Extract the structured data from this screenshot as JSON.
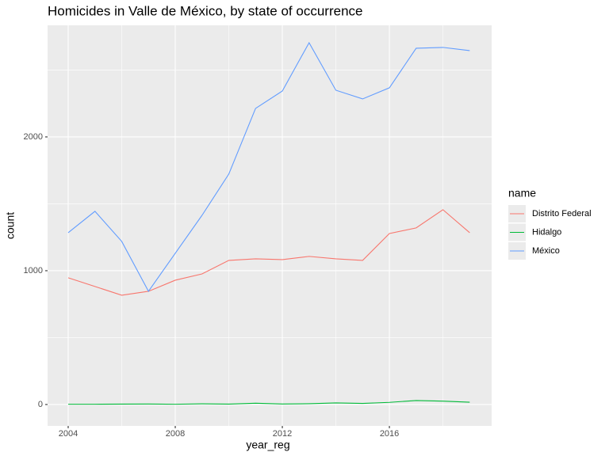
{
  "chart_data": {
    "type": "line",
    "title": "Homicides in Valle de México, by state of occurrence",
    "x_label": "year_reg",
    "y_label": "count",
    "legend_title": "name",
    "x": [
      2004,
      2005,
      2006,
      2007,
      2008,
      2009,
      2010,
      2011,
      2012,
      2013,
      2014,
      2015,
      2016,
      2017,
      2018,
      2019
    ],
    "series": [
      {
        "name": "Distrito Federal",
        "color": "#F8766D",
        "values": [
          947,
          882,
          817,
          846,
          929,
          976,
          1077,
          1089,
          1083,
          1107,
          1089,
          1077,
          1278,
          1320,
          1456,
          1284
        ]
      },
      {
        "name": "Hidalgo",
        "color": "#00BA38",
        "values": [
          2,
          2,
          3,
          4,
          2,
          5,
          3,
          10,
          4,
          6,
          12,
          8,
          16,
          30,
          25,
          17
        ]
      },
      {
        "name": "México",
        "color": "#619CFF",
        "values": [
          1284,
          1444,
          1219,
          846,
          1130,
          1414,
          1722,
          2213,
          2343,
          2704,
          2349,
          2284,
          2367,
          2663,
          2669,
          2645
        ]
      }
    ],
    "xlim": [
      2003.23,
      2019.82
    ],
    "ylim": [
      -160,
      2834
    ],
    "xticks": [
      2004,
      2008,
      2012,
      2016
    ],
    "yticks": [
      0,
      1000,
      2000
    ],
    "x_minor_grid": [
      2006,
      2010,
      2014,
      2018
    ],
    "y_minor_grid": [
      500,
      1500,
      2500
    ],
    "grid": true,
    "legend_position": "right"
  }
}
